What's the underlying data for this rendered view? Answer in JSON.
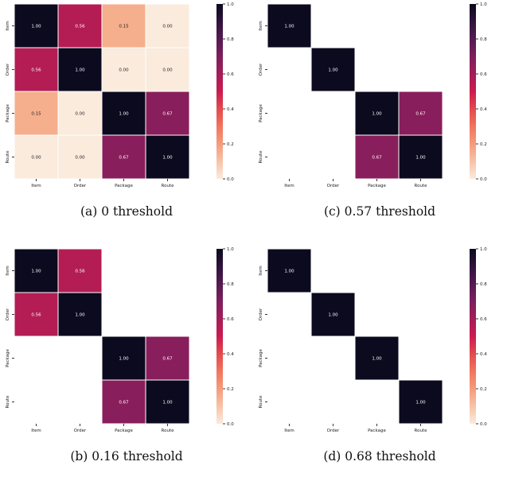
{
  "figure": {
    "panels": [
      {
        "caption": "(a) 0 threshold"
      },
      {
        "caption": "(c) 0.57 threshold"
      },
      {
        "caption": "(b) 0.16 threshold"
      },
      {
        "caption": "(d) 0.68 threshold"
      }
    ]
  },
  "chart_data": [
    {
      "type": "heatmap",
      "caption": "(a) 0 threshold",
      "row_labels": [
        "Item",
        "Order",
        "Package",
        "Route"
      ],
      "col_labels": [
        "Item",
        "Order",
        "Package",
        "Route"
      ],
      "values": [
        [
          1.0,
          0.56,
          0.15,
          0.0
        ],
        [
          0.56,
          1.0,
          0.0,
          0.0
        ],
        [
          0.15,
          0.0,
          1.0,
          0.67
        ],
        [
          0.0,
          0.0,
          0.67,
          1.0
        ]
      ],
      "annotations": [
        [
          "1.00",
          "0.56",
          "0.15",
          "0.00"
        ],
        [
          "0.56",
          "1.00",
          "0.00",
          "0.00"
        ],
        [
          "0.15",
          "0.00",
          "1.00",
          "0.67"
        ],
        [
          "0.00",
          "0.00",
          "0.67",
          "1.00"
        ]
      ],
      "colorbar": {
        "range": [
          0,
          1
        ],
        "ticks": [
          "0.0",
          "0.2",
          "0.4",
          "0.6",
          "0.8",
          "1.0"
        ]
      }
    },
    {
      "type": "heatmap",
      "caption": "(c) 0.57 threshold",
      "row_labels": [
        "Item",
        "Order",
        "Package",
        "Route"
      ],
      "col_labels": [
        "Item",
        "Order",
        "Package",
        "Route"
      ],
      "values": [
        [
          1.0,
          null,
          null,
          null
        ],
        [
          null,
          1.0,
          null,
          null
        ],
        [
          null,
          null,
          1.0,
          0.67
        ],
        [
          null,
          null,
          0.67,
          1.0
        ]
      ],
      "annotations": [
        [
          "1.00",
          "",
          "",
          ""
        ],
        [
          "",
          "1.00",
          "",
          ""
        ],
        [
          "",
          "",
          "1.00",
          "0.67"
        ],
        [
          "",
          "",
          "0.67",
          "1.00"
        ]
      ],
      "colorbar": {
        "range": [
          0,
          1
        ],
        "ticks": [
          "0.0",
          "0.2",
          "0.4",
          "0.6",
          "0.8",
          "1.0"
        ]
      }
    },
    {
      "type": "heatmap",
      "caption": "(b) 0.16 threshold",
      "row_labels": [
        "Item",
        "Order",
        "Package",
        "Route"
      ],
      "col_labels": [
        "Item",
        "Order",
        "Package",
        "Route"
      ],
      "values": [
        [
          1.0,
          0.56,
          null,
          null
        ],
        [
          0.56,
          1.0,
          null,
          null
        ],
        [
          null,
          null,
          1.0,
          0.67
        ],
        [
          null,
          null,
          0.67,
          1.0
        ]
      ],
      "annotations": [
        [
          "1.00",
          "0.56",
          "",
          ""
        ],
        [
          "0.56",
          "1.00",
          "",
          ""
        ],
        [
          "",
          "",
          "1.00",
          "0.67"
        ],
        [
          "",
          "",
          "0.67",
          "1.00"
        ]
      ],
      "colorbar": {
        "range": [
          0,
          1
        ],
        "ticks": [
          "0.0",
          "0.2",
          "0.4",
          "0.6",
          "0.8",
          "1.0"
        ]
      }
    },
    {
      "type": "heatmap",
      "caption": "(d) 0.68 threshold",
      "row_labels": [
        "Item",
        "Order",
        "Package",
        "Route"
      ],
      "col_labels": [
        "Item",
        "Order",
        "Package",
        "Route"
      ],
      "values": [
        [
          1.0,
          null,
          null,
          null
        ],
        [
          null,
          1.0,
          null,
          null
        ],
        [
          null,
          null,
          1.0,
          null
        ],
        [
          null,
          null,
          null,
          1.0
        ]
      ],
      "annotations": [
        [
          "1.00",
          "",
          "",
          ""
        ],
        [
          "",
          "1.00",
          "",
          ""
        ],
        [
          "",
          "",
          "1.00",
          ""
        ],
        [
          "",
          "",
          "",
          "1.00"
        ]
      ],
      "colorbar": {
        "range": [
          0,
          1
        ],
        "ticks": [
          "0.0",
          "0.2",
          "0.4",
          "0.6",
          "0.8",
          "1.0"
        ]
      }
    }
  ]
}
